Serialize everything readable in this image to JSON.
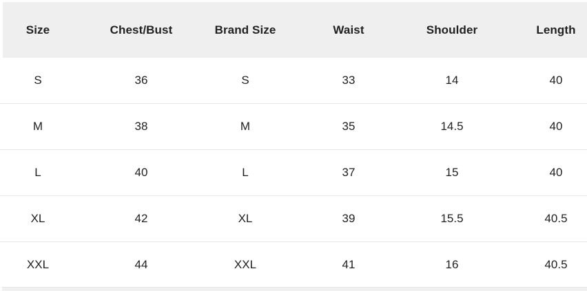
{
  "size_chart": {
    "columns": [
      "Size",
      "Chest/Bust",
      "Brand Size",
      "Waist",
      "Shoulder",
      "Length"
    ],
    "rows": [
      [
        "S",
        "36",
        "S",
        "33",
        "14",
        "40"
      ],
      [
        "M",
        "38",
        "M",
        "35",
        "14.5",
        "40"
      ],
      [
        "L",
        "40",
        "L",
        "37",
        "15",
        "40"
      ],
      [
        "XL",
        "42",
        "XL",
        "39",
        "15.5",
        "40.5"
      ],
      [
        "XXL",
        "44",
        "XXL",
        "41",
        "16",
        "40.5"
      ]
    ]
  },
  "colors": {
    "header_bg": "#efefef",
    "text": "#212121",
    "divider": "#e7e7e7",
    "next_section_bg": "#f1f1f1"
  }
}
